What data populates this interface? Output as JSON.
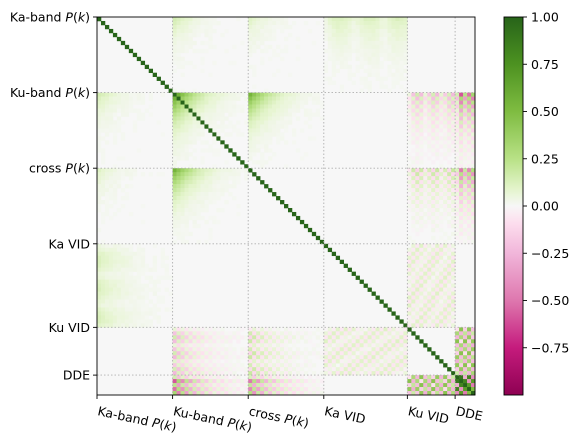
{
  "chart_data": {
    "type": "heatmap",
    "title": "",
    "xlabel": "",
    "ylabel": "",
    "blocks": [
      {
        "label": "Ka-band",
        "math": "P(k)",
        "size": 19
      },
      {
        "label": "Ku-band",
        "math": "P(k)",
        "size": 19
      },
      {
        "label": "cross",
        "math": "P(k)",
        "size": 19
      },
      {
        "label": "Ka VID",
        "math": "",
        "size": 21
      },
      {
        "label": "Ku VID",
        "math": "",
        "size": 12
      },
      {
        "label": "DDE",
        "math": "",
        "size": 5
      }
    ],
    "x_tick_labels": [
      {
        "text": "Ka-band ",
        "math": "P(k)"
      },
      {
        "text": "Ku-band ",
        "math": "P(k)"
      },
      {
        "text": "cross ",
        "math": "P(k)"
      },
      {
        "text": "Ka VID",
        "math": ""
      },
      {
        "text": "Ku VID",
        "math": ""
      },
      {
        "text": "DDE",
        "math": ""
      }
    ],
    "y_tick_labels": [
      {
        "text": "Ka-band ",
        "math": "P(k)"
      },
      {
        "text": "Ku-band ",
        "math": "P(k)"
      },
      {
        "text": "cross ",
        "math": "P(k)"
      },
      {
        "text": "Ka VID",
        "math": ""
      },
      {
        "text": "Ku VID",
        "math": ""
      },
      {
        "text": "DDE",
        "math": ""
      }
    ],
    "colorbar": {
      "vmin": -1.0,
      "vmax": 1.0,
      "ticks": [
        "1.00",
        "0.75",
        "0.50",
        "0.25",
        "0.00",
        "−0.25",
        "−0.50",
        "−0.75"
      ],
      "tick_values": [
        1.0,
        0.75,
        0.5,
        0.25,
        0.0,
        -0.25,
        -0.5,
        -0.75
      ],
      "colormap": "PiYG"
    },
    "diagonal_value": 1.0,
    "block_correlations": [
      {
        "row": 0,
        "col": 1,
        "value": 0.15
      },
      {
        "row": 0,
        "col": 2,
        "value": 0.1
      },
      {
        "row": 0,
        "col": 3,
        "value": 0.12
      },
      {
        "row": 1,
        "col": 2,
        "value": 0.55
      },
      {
        "row": 1,
        "col": 1,
        "value": 0.7
      },
      {
        "row": 1,
        "col": 4,
        "value": -0.25
      },
      {
        "row": 1,
        "col": 5,
        "value": -0.6
      },
      {
        "row": 2,
        "col": 4,
        "value": 0.2
      },
      {
        "row": 2,
        "col": 5,
        "value": -0.5
      },
      {
        "row": 3,
        "col": 4,
        "value": 0.1
      },
      {
        "row": 4,
        "col": 5,
        "value": 0.45
      },
      {
        "row": 5,
        "col": 5,
        "value": 0.9
      }
    ],
    "grid": "dotted block separators"
  }
}
